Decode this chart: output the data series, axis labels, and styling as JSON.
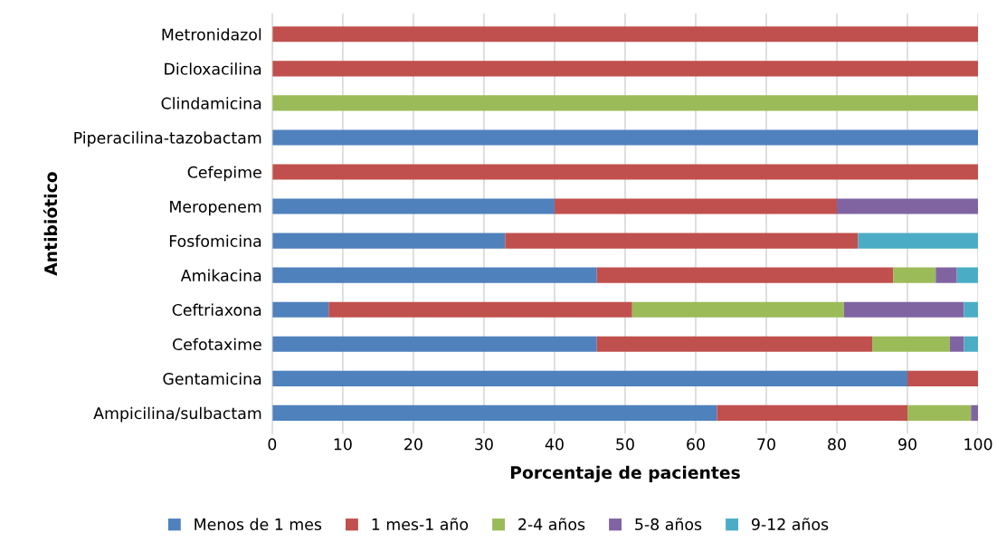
{
  "chart_data": {
    "type": "bar",
    "orientation": "horizontal",
    "stacked": true,
    "xlabel": "Porcentaje de pacientes",
    "ylabel": "Antibiótico",
    "categories": [
      "Metronidazol",
      "Dicloxacilina",
      "Clindamicina",
      "Piperacilina-tazobactam",
      "Cefepime",
      "Meropenem",
      "Fosfomicina",
      "Amikacina",
      "Ceftriaxona",
      "Cefotaxime",
      "Gentamicina",
      "Ampicilina/sulbactam"
    ],
    "series": [
      {
        "name": "Menos de 1 mes",
        "color": "#4f81bd",
        "values": [
          0,
          0,
          0,
          100,
          0,
          40,
          33,
          46,
          8,
          46,
          90,
          63
        ]
      },
      {
        "name": "1 mes-1 año",
        "color": "#c0504d",
        "values": [
          100,
          100,
          0,
          0,
          100,
          40,
          50,
          42,
          43,
          39,
          10,
          27
        ]
      },
      {
        "name": "2-4 años",
        "color": "#9bbb59",
        "values": [
          0,
          0,
          100,
          0,
          0,
          0,
          0,
          6,
          30,
          11,
          0,
          9
        ]
      },
      {
        "name": "5-8 años",
        "color": "#8064a2",
        "values": [
          0,
          0,
          0,
          0,
          0,
          20,
          0,
          3,
          17,
          2,
          0,
          1
        ]
      },
      {
        "name": "9-12 años",
        "color": "#4bacc6",
        "values": [
          0,
          0,
          0,
          0,
          0,
          0,
          17,
          3,
          2,
          2,
          0,
          0
        ]
      }
    ],
    "xlim": [
      0,
      100
    ],
    "xticks": [
      0,
      10,
      20,
      30,
      40,
      50,
      60,
      70,
      80,
      90,
      100
    ],
    "grid": "x",
    "legend": "bottom"
  }
}
